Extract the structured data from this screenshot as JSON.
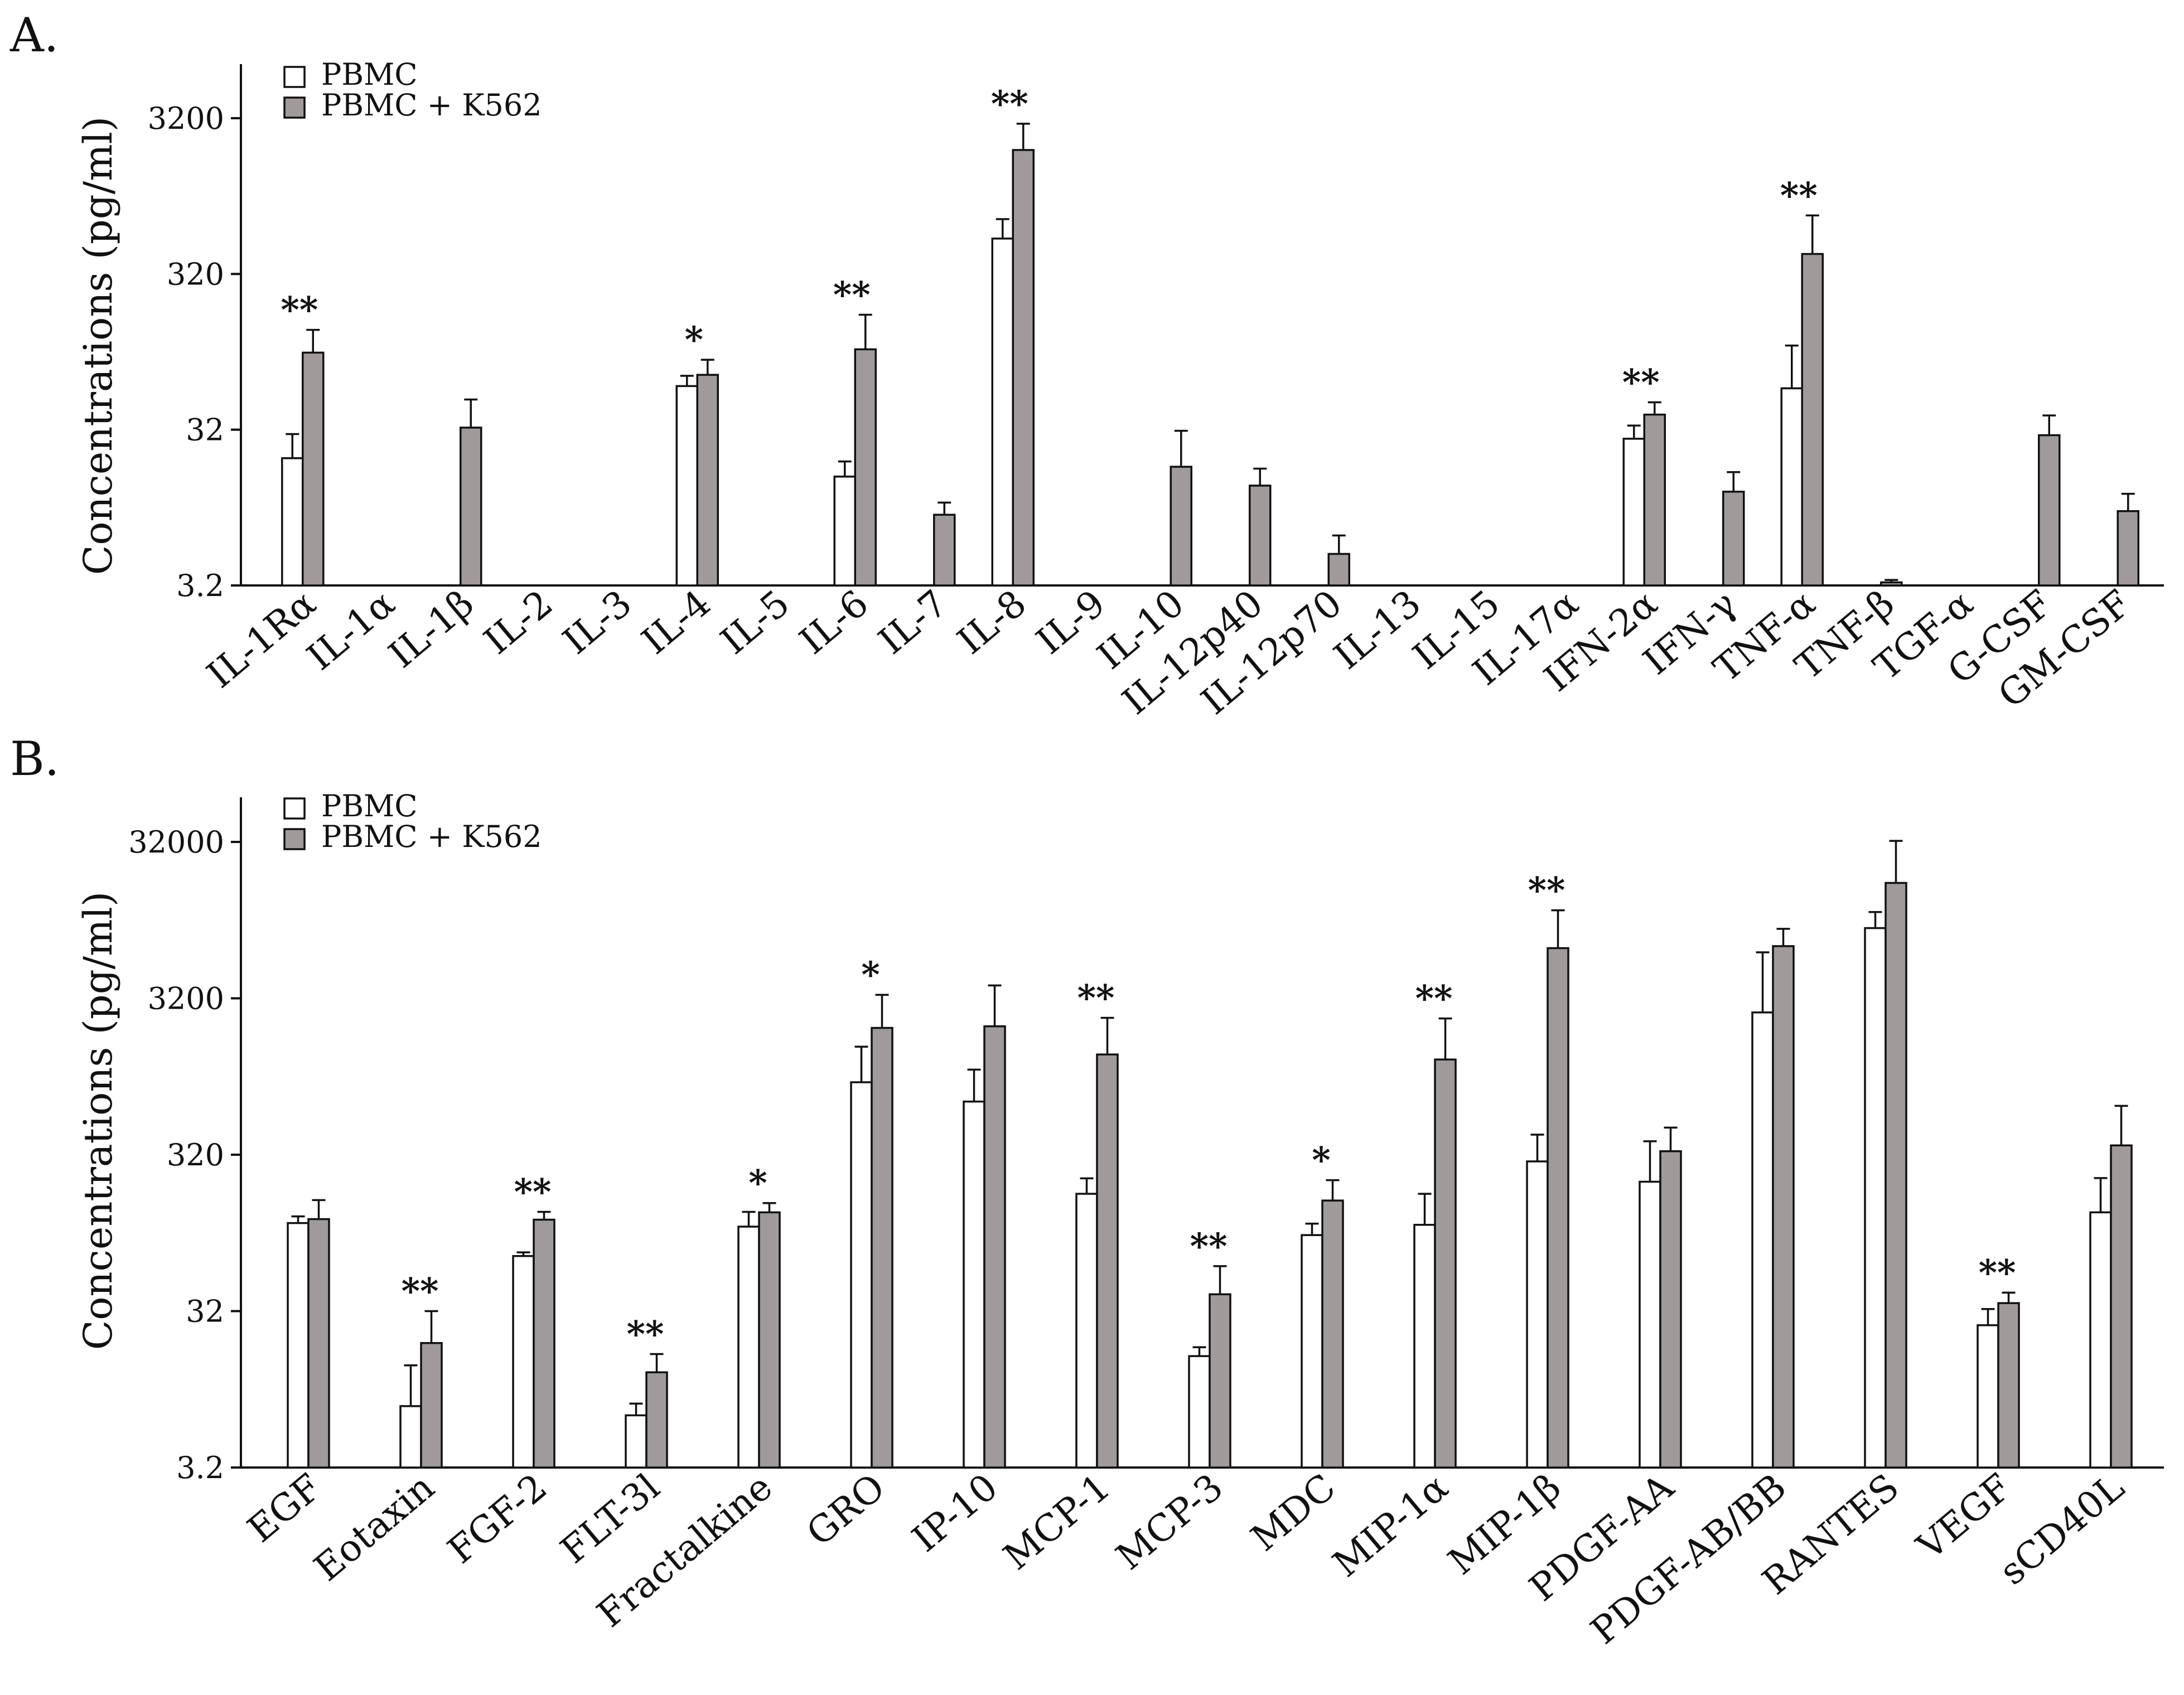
{
  "colors": {
    "bar_a": "#ffffff",
    "bar_b": "#a19a9a",
    "stroke": "#111111"
  },
  "chart_data": [
    {
      "panel": "A.",
      "type": "bar",
      "scale": "log10",
      "ylabel": "Concentrations (pg/ml)",
      "ylim": [
        3.2,
        6000
      ],
      "yticks": [
        3.2,
        32,
        320,
        3200
      ],
      "ytick_labels": [
        "3.2",
        "32",
        "320",
        "3200"
      ],
      "legend": [
        "PBMC",
        "PBMC + K562"
      ],
      "legend_position": "top-left",
      "categories": [
        "IL-1Rα",
        "IL-1α",
        "IL-1β",
        "IL-2",
        "IL-3",
        "IL-4",
        "IL-5",
        "IL-6",
        "IL-7",
        "IL-8",
        "IL-9",
        "IL-10",
        "IL-12p40",
        "IL-12p70",
        "IL-13",
        "IL-15",
        "IL-17α",
        "IFN-2α",
        "IFN-γ",
        "TNF-α",
        "TNF-β",
        "TGF-α",
        "G-CSF",
        "GM-CSF"
      ],
      "series": [
        {
          "name": "PBMC",
          "values": [
            21,
            null,
            null,
            null,
            null,
            61,
            null,
            16,
            null,
            540,
            null,
            null,
            null,
            null,
            null,
            null,
            null,
            28,
            null,
            59,
            null,
            null,
            null,
            null
          ],
          "errors": [
            9,
            0,
            0,
            0,
            0,
            10,
            0,
            4,
            0,
            180,
            0,
            0,
            0,
            0,
            0,
            0,
            0,
            6,
            0,
            52,
            0,
            0,
            0,
            0
          ]
        },
        {
          "name": "PBMC + K562",
          "values": [
            100,
            null,
            33,
            null,
            null,
            72,
            null,
            105,
            9.1,
            2000,
            null,
            18.5,
            14,
            5.1,
            null,
            null,
            null,
            40,
            12.8,
            430,
            3.35,
            null,
            29.5,
            9.6
          ],
          "errors": [
            40,
            0,
            17,
            0,
            0,
            18,
            0,
            70,
            1.8,
            950,
            0,
            13,
            4,
            1.6,
            0,
            0,
            0,
            8,
            4.3,
            330,
            0.12,
            0,
            10,
            2.8
          ]
        }
      ],
      "significance": [
        "**",
        "",
        "",
        "",
        "",
        "*",
        "",
        "**",
        "",
        "**",
        "",
        "",
        "",
        "",
        "",
        "",
        "",
        "**",
        "",
        "**",
        "",
        "",
        "",
        ""
      ]
    },
    {
      "panel": "B.",
      "type": "bar",
      "scale": "log10",
      "ylabel": "Concentrations (pg/ml)",
      "ylim": [
        3.2,
        45000
      ],
      "yticks": [
        3.2,
        32,
        320,
        3200,
        32000
      ],
      "ytick_labels": [
        "3.2",
        "32",
        "320",
        "3200",
        "32000"
      ],
      "legend": [
        "PBMC",
        "PBMC + K562"
      ],
      "legend_position": "top-left",
      "categories": [
        "EGF",
        "Eotaxin",
        "FGF-2",
        "FLT-3l",
        "Fractalkine",
        "GRO",
        "IP-10",
        "MCP-1",
        "MCP-3",
        "MDC",
        "MIP-1α",
        "MIP-1β",
        "PDGF-AA",
        "PDGF-AB/BB",
        "RANTES",
        "VEGF",
        "sCD40L"
      ],
      "series": [
        {
          "name": "PBMC",
          "values": [
            117,
            7.9,
            72,
            6.9,
            111,
            930,
            700,
            180,
            16.5,
            98,
            114,
            290,
            215,
            2600,
            9000,
            26,
            137
          ],
          "errors": [
            12,
            6.5,
            4,
            1.3,
            27,
            640,
            420,
            46,
            2.3,
            18,
            66,
            140,
            175,
            3700,
            2400,
            7,
            90
          ]
        },
        {
          "name": "PBMC + K562",
          "values": [
            124,
            20,
            123,
            13,
            137,
            2070,
            2120,
            1400,
            41,
            163,
            1300,
            6700,
            337,
            6900,
            17500,
            36,
            367
          ],
          "errors": [
            40,
            12,
            15,
            4,
            20,
            1300,
            1750,
            1000,
            21,
            57,
            1080,
            5000,
            140,
            2000,
            15000,
            6,
            290
          ]
        }
      ],
      "significance": [
        "",
        "**",
        "**",
        "**",
        "*",
        "*",
        "",
        "**",
        "**",
        "*",
        "**",
        "**",
        "",
        "",
        "",
        "**",
        ""
      ]
    }
  ]
}
